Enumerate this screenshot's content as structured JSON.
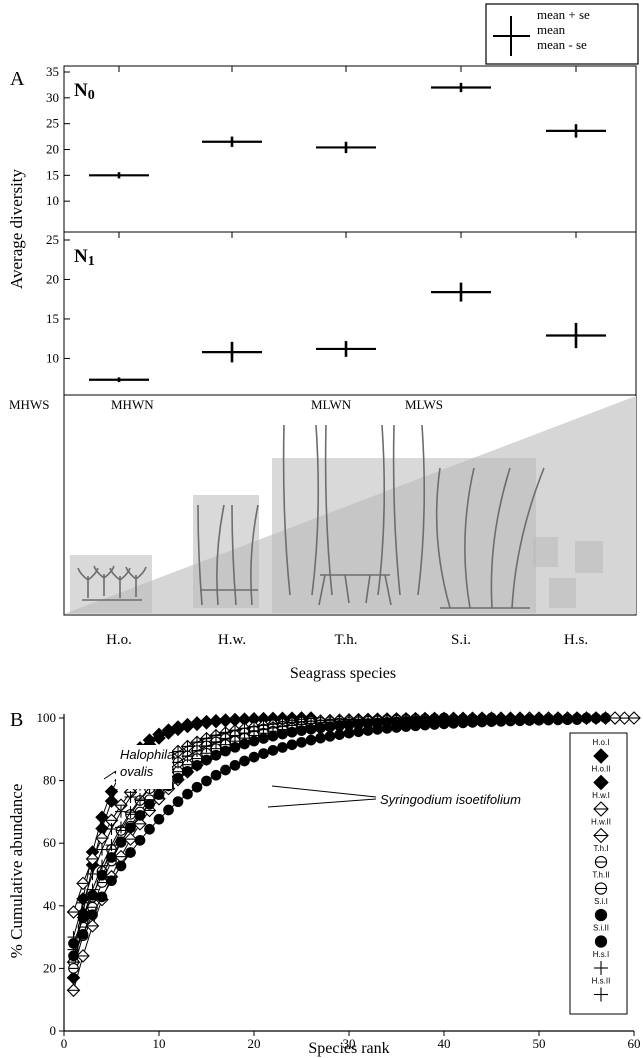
{
  "colors": {
    "ink": "#000000",
    "wedge": "#d6d6d6",
    "plant_box": "#b9b9b9",
    "plant": "#6d6d6d",
    "background": "#ffffff"
  },
  "chart_data": [
    {
      "id": "A",
      "panel_label": "A",
      "type": "errorbar",
      "ylabel": "Average diversity",
      "xlabel": "Seagrass species",
      "categories": [
        "H.o.",
        "H.w.",
        "T.h.",
        "S.i.",
        "H.s."
      ],
      "grid": false,
      "legend": {
        "position": "top-right",
        "entries": [
          "mean + se",
          "mean",
          "mean - se"
        ]
      },
      "zone_labels": [
        "MHWS",
        "MHWN",
        "MLWN",
        "MLWS"
      ],
      "subpanels": [
        {
          "label": "N",
          "subscript": "0",
          "ylim": [
            5,
            35
          ],
          "yticks": [
            10,
            15,
            20,
            25,
            30,
            35
          ],
          "mean": [
            15.0,
            21.5,
            20.4,
            32.0,
            23.6
          ],
          "se": [
            0.6,
            1.0,
            1.1,
            0.9,
            1.3
          ]
        },
        {
          "label": "N",
          "subscript": "1",
          "ylim": [
            6,
            25
          ],
          "yticks": [
            10,
            15,
            20,
            25
          ],
          "mean": [
            7.3,
            10.8,
            11.2,
            18.4,
            12.9
          ],
          "se": [
            0.3,
            1.3,
            1.0,
            1.2,
            1.6
          ]
        }
      ]
    },
    {
      "id": "B",
      "panel_label": "B",
      "type": "line",
      "xlabel": "Species rank",
      "ylabel": "% Cumulative abundance",
      "xlim": [
        0,
        60
      ],
      "ylim": [
        0,
        100
      ],
      "xticks": [
        0,
        10,
        20,
        30,
        40,
        50,
        60
      ],
      "yticks": [
        0,
        20,
        40,
        60,
        80,
        100
      ],
      "grid": false,
      "legend": {
        "position": "right"
      },
      "annotations": [
        {
          "text_line1": "Halophila",
          "text_line2": "ovalis"
        },
        {
          "text": "Syringodium isoetifolium"
        }
      ],
      "series": [
        {
          "name": "H.o.I",
          "marker": "diamond-filled",
          "n": 26,
          "y1": 22,
          "k": 0.3
        },
        {
          "name": "H.o.II",
          "marker": "diamond-filled",
          "n": 25,
          "y1": 17,
          "k": 0.285
        },
        {
          "name": "H.w.I",
          "marker": "diamond-open",
          "n": 60,
          "y1": 13,
          "k": 0.135
        },
        {
          "name": "H.w.II",
          "marker": "diamond-open",
          "n": 58,
          "y1": 38,
          "k": 0.16
        },
        {
          "name": "T.h.I",
          "marker": "circle-open",
          "n": 40,
          "y1": 22,
          "k": 0.155
        },
        {
          "name": "T.h.II",
          "marker": "circle-open",
          "n": 45,
          "y1": 20,
          "k": 0.14
        },
        {
          "name": "S.i.I",
          "marker": "circle-filled",
          "n": 57,
          "y1": 28,
          "k": 0.12
        },
        {
          "name": "S.i.II",
          "marker": "circle-filled",
          "n": 55,
          "y1": 24,
          "k": 0.095
        },
        {
          "name": "H.s.I",
          "marker": "plus",
          "n": 43,
          "y1": 30,
          "k": 0.17
        },
        {
          "name": "H.s.II",
          "marker": "plus",
          "n": 48,
          "y1": 26,
          "k": 0.15
        }
      ]
    }
  ]
}
